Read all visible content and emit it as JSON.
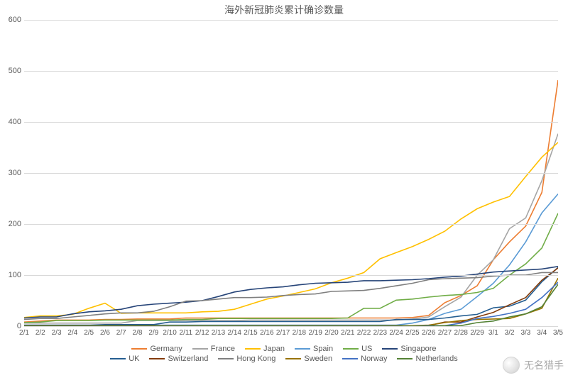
{
  "title": "海外新冠肺炎累计确诊数量",
  "watermark": "无名猎手",
  "chart": {
    "type": "line",
    "background_color": "#ffffff",
    "grid_color": "#d9d9d9",
    "text_color": "#595959",
    "title_fontsize": 14,
    "tick_fontsize": 11,
    "line_width": 1.6,
    "ylim": [
      0,
      600
    ],
    "ytick_step": 100,
    "yticks": [
      0,
      100,
      200,
      300,
      400,
      500,
      600
    ],
    "categories": [
      "2/1",
      "2/2",
      "2/3",
      "2/4",
      "2/5",
      "2/6",
      "2/7",
      "2/8",
      "2/9",
      "2/10",
      "2/11",
      "2/12",
      "2/13",
      "2/14",
      "2/15",
      "2/16",
      "2/17",
      "2/18",
      "2/19",
      "2/20",
      "2/21",
      "2/22",
      "2/23",
      "2/24",
      "2/25",
      "2/26",
      "2/27",
      "2/28",
      "2/29",
      "3/1",
      "3/2",
      "3/3",
      "3/4",
      "3/5"
    ],
    "series": [
      {
        "name": "Germany",
        "color": "#ed7d31",
        "values": [
          8,
          10,
          12,
          12,
          12,
          13,
          13,
          14,
          14,
          14,
          16,
          16,
          16,
          16,
          16,
          16,
          16,
          16,
          16,
          16,
          16,
          16,
          16,
          16,
          17,
          21,
          46,
          60,
          79,
          130,
          165,
          196,
          262,
          482
        ]
      },
      {
        "name": "France",
        "color": "#a5a5a5",
        "values": [
          6,
          6,
          6,
          6,
          6,
          6,
          6,
          11,
          11,
          11,
          11,
          11,
          11,
          11,
          12,
          12,
          12,
          12,
          12,
          12,
          12,
          12,
          12,
          12,
          14,
          18,
          38,
          57,
          100,
          130,
          191,
          212,
          285,
          377
        ]
      },
      {
        "name": "Japan",
        "color": "#ffc000",
        "values": [
          17,
          20,
          20,
          23,
          35,
          45,
          25,
          26,
          26,
          26,
          26,
          28,
          29,
          33,
          43,
          53,
          59,
          66,
          73,
          85,
          94,
          105,
          132,
          144,
          156,
          170,
          186,
          210,
          230,
          243,
          254,
          293,
          331,
          360
        ]
      },
      {
        "name": "Spain",
        "color": "#5b9bd5",
        "values": [
          1,
          1,
          1,
          1,
          1,
          1,
          1,
          1,
          2,
          2,
          2,
          2,
          2,
          2,
          2,
          2,
          2,
          2,
          2,
          2,
          2,
          2,
          2,
          2,
          6,
          13,
          25,
          33,
          58,
          84,
          120,
          165,
          222,
          259
        ]
      },
      {
        "name": "US",
        "color": "#70ad47",
        "values": [
          7,
          8,
          11,
          11,
          11,
          12,
          12,
          12,
          12,
          12,
          13,
          13,
          15,
          15,
          15,
          15,
          15,
          15,
          15,
          15,
          16,
          35,
          35,
          51,
          53,
          57,
          60,
          62,
          66,
          74,
          100,
          122,
          153,
          221
        ]
      },
      {
        "name": "Singapore",
        "color": "#264478",
        "values": [
          16,
          18,
          18,
          24,
          28,
          30,
          33,
          40,
          43,
          45,
          47,
          50,
          58,
          67,
          72,
          75,
          77,
          81,
          84,
          85,
          86,
          89,
          89,
          90,
          91,
          93,
          96,
          98,
          102,
          106,
          108,
          110,
          112,
          117
        ]
      },
      {
        "name": "UK",
        "color": "#255e91",
        "values": [
          2,
          2,
          2,
          2,
          2,
          3,
          3,
          3,
          3,
          8,
          8,
          9,
          9,
          9,
          9,
          9,
          9,
          9,
          9,
          9,
          9,
          9,
          9,
          13,
          13,
          13,
          16,
          20,
          23,
          36,
          39,
          51,
          87,
          115
        ]
      },
      {
        "name": "Switzerland",
        "color": "#843c0c",
        "values": [
          0,
          0,
          0,
          0,
          0,
          0,
          0,
          0,
          0,
          0,
          0,
          0,
          0,
          0,
          0,
          0,
          0,
          0,
          0,
          0,
          0,
          0,
          0,
          0,
          1,
          1,
          8,
          8,
          18,
          27,
          42,
          56,
          90,
          114
        ]
      },
      {
        "name": "Hong Kong",
        "color": "#7f7f7f",
        "values": [
          13,
          15,
          15,
          18,
          21,
          24,
          26,
          26,
          29,
          38,
          49,
          50,
          53,
          56,
          56,
          57,
          60,
          62,
          63,
          68,
          69,
          70,
          74,
          79,
          84,
          91,
          93,
          94,
          95,
          98,
          100,
          100,
          105,
          105
        ]
      },
      {
        "name": "Sweden",
        "color": "#997300",
        "values": [
          1,
          1,
          1,
          1,
          1,
          1,
          1,
          1,
          1,
          1,
          1,
          1,
          1,
          1,
          1,
          1,
          1,
          1,
          1,
          1,
          1,
          1,
          1,
          1,
          1,
          2,
          7,
          11,
          13,
          14,
          15,
          24,
          35,
          94
        ]
      },
      {
        "name": "Norway",
        "color": "#4472c4",
        "values": [
          0,
          0,
          0,
          0,
          0,
          0,
          0,
          0,
          0,
          0,
          0,
          0,
          0,
          0,
          0,
          0,
          0,
          0,
          0,
          0,
          0,
          0,
          0,
          0,
          0,
          1,
          1,
          6,
          15,
          19,
          25,
          33,
          56,
          86
        ]
      },
      {
        "name": "Netherlands",
        "color": "#548235",
        "values": [
          0,
          0,
          0,
          0,
          0,
          0,
          0,
          0,
          0,
          0,
          0,
          0,
          0,
          0,
          0,
          0,
          0,
          0,
          0,
          0,
          0,
          0,
          0,
          0,
          0,
          0,
          1,
          1,
          7,
          10,
          18,
          24,
          38,
          82
        ]
      }
    ],
    "legend_rows": [
      [
        "Germany",
        "France",
        "Japan",
        "Spain",
        "US",
        "Singapore"
      ],
      [
        "UK",
        "Switzerland",
        "Hong Kong",
        "Sweden",
        "Norway",
        "Netherlands"
      ]
    ]
  }
}
